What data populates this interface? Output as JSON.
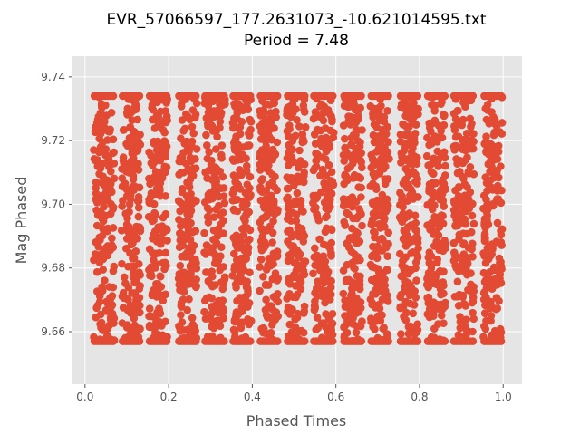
{
  "chart_data": {
    "type": "scatter",
    "title": "EVR_57066597_177.2631073_-10.621014595.txt",
    "subtitle": "Period = 7.48",
    "xlabel": "Phased Times",
    "ylabel": "Mag Phased",
    "xlim": [
      -0.03,
      1.045
    ],
    "ylim": [
      9.6435,
      9.7465
    ],
    "x_ticks": [
      "0.0",
      "0.2",
      "0.4",
      "0.6",
      "0.8",
      "1.0"
    ],
    "y_ticks": [
      "9.66",
      "9.68",
      "9.70",
      "9.72",
      "9.74"
    ],
    "grid": true,
    "background_color": "#e5e5e5",
    "grid_color": "#ffffff",
    "marker_color": "#e24a33",
    "series": [
      {
        "bands": [
          {
            "x_center": 0.045,
            "width": 0.05
          },
          {
            "x_center": 0.11,
            "width": 0.045
          },
          {
            "x_center": 0.175,
            "width": 0.045
          },
          {
            "x_center": 0.245,
            "width": 0.045
          },
          {
            "x_center": 0.31,
            "width": 0.05
          },
          {
            "x_center": 0.375,
            "width": 0.045
          },
          {
            "x_center": 0.44,
            "width": 0.045
          },
          {
            "x_center": 0.505,
            "width": 0.045
          },
          {
            "x_center": 0.57,
            "width": 0.05
          },
          {
            "x_center": 0.64,
            "width": 0.045
          },
          {
            "x_center": 0.705,
            "width": 0.045
          },
          {
            "x_center": 0.775,
            "width": 0.045
          },
          {
            "x_center": 0.84,
            "width": 0.045
          },
          {
            "x_center": 0.905,
            "width": 0.05
          },
          {
            "x_center": 0.975,
            "width": 0.045
          }
        ],
        "y_min": 9.657,
        "y_max": 9.734
      }
    ]
  }
}
